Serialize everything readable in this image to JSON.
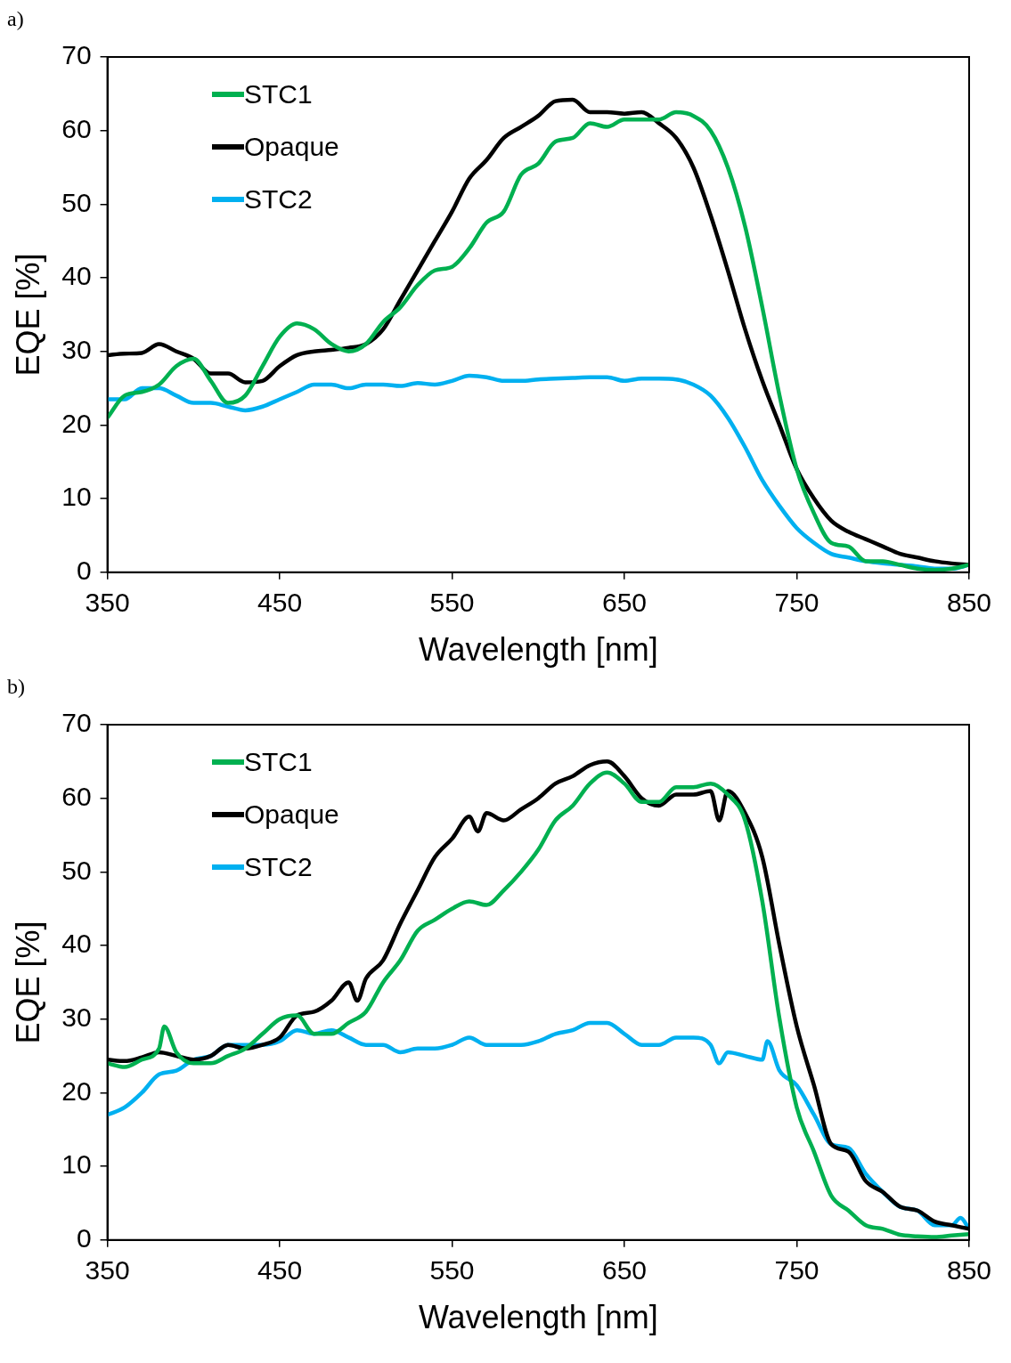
{
  "chart_data": [
    {
      "type": "line",
      "title": "a)",
      "xlabel": "Wavelength [nm]",
      "ylabel": "EQE [%]",
      "xlim": [
        350,
        850
      ],
      "xticks": [
        350,
        450,
        550,
        650,
        750,
        850
      ],
      "ylim": [
        0,
        70
      ],
      "yticks": [
        0,
        10,
        20,
        30,
        40,
        50,
        60,
        70
      ],
      "grid": false,
      "legend": "top left",
      "marker": "none",
      "line_style": "solid",
      "series": [
        {
          "name": "STC1",
          "color": "#00b050",
          "x": [
            350,
            360,
            370,
            380,
            390,
            400,
            410,
            420,
            430,
            440,
            450,
            460,
            470,
            480,
            490,
            500,
            510,
            520,
            530,
            540,
            550,
            560,
            570,
            580,
            590,
            600,
            610,
            620,
            630,
            640,
            650,
            660,
            670,
            680,
            690,
            700,
            710,
            720,
            730,
            740,
            750,
            760,
            770,
            780,
            790,
            800,
            810,
            820,
            830,
            840,
            850
          ],
          "values": [
            21,
            24,
            24.5,
            25.5,
            28,
            29,
            26,
            23,
            24,
            28,
            32,
            33.8,
            33,
            31,
            30,
            31,
            34,
            36,
            39,
            41,
            41.5,
            44,
            47.5,
            49,
            54,
            55.5,
            58.5,
            59,
            61,
            60.5,
            61.5,
            61.5,
            61.5,
            62.5,
            62,
            60,
            55,
            47,
            36,
            24,
            14,
            8,
            4,
            3.5,
            1.5,
            1.5,
            1,
            0.5,
            0.3,
            0.5,
            1
          ]
        },
        {
          "name": "Opaque",
          "color": "#000000",
          "x": [
            350,
            360,
            370,
            380,
            390,
            400,
            410,
            420,
            430,
            440,
            450,
            460,
            470,
            480,
            490,
            500,
            510,
            520,
            530,
            540,
            550,
            560,
            570,
            580,
            590,
            600,
            610,
            620,
            630,
            640,
            650,
            660,
            670,
            680,
            690,
            700,
            710,
            720,
            730,
            740,
            750,
            760,
            770,
            780,
            790,
            800,
            810,
            820,
            830,
            840,
            850
          ],
          "values": [
            29.5,
            29.7,
            29.8,
            31,
            30,
            29,
            27,
            27,
            25.8,
            26,
            28,
            29.5,
            30,
            30.2,
            30.5,
            31,
            33,
            37,
            41,
            45,
            49,
            53.5,
            56,
            59,
            60.5,
            62,
            64,
            64.2,
            62.5,
            62.5,
            62.3,
            62.5,
            61,
            59,
            55,
            48.5,
            41,
            33,
            26,
            20,
            14,
            10,
            7,
            5.5,
            4.5,
            3.5,
            2.5,
            2,
            1.5,
            1.2,
            1
          ]
        },
        {
          "name": "STC2",
          "color": "#00b0f0",
          "x": [
            350,
            360,
            370,
            380,
            390,
            400,
            410,
            420,
            430,
            440,
            450,
            460,
            470,
            480,
            490,
            500,
            510,
            520,
            530,
            540,
            550,
            560,
            570,
            580,
            590,
            600,
            610,
            620,
            630,
            640,
            650,
            660,
            670,
            680,
            690,
            700,
            710,
            720,
            730,
            740,
            750,
            760,
            770,
            780,
            790,
            800,
            810,
            820,
            830,
            840,
            850
          ],
          "values": [
            23.5,
            23.5,
            25,
            25,
            24,
            23,
            23,
            22.5,
            22,
            22.5,
            23.5,
            24.5,
            25.5,
            25.5,
            25,
            25.5,
            25.5,
            25.3,
            25.7,
            25.5,
            26,
            26.7,
            26.5,
            26,
            26,
            26.2,
            26.3,
            26.4,
            26.5,
            26.5,
            26,
            26.3,
            26.3,
            26.2,
            25.5,
            24,
            21,
            17,
            12.5,
            9,
            6,
            4,
            2.5,
            2,
            1.5,
            1.2,
            1,
            0.8,
            0.5,
            0.5,
            1
          ]
        }
      ]
    },
    {
      "type": "line",
      "title": "b)",
      "xlabel": "Wavelength [nm]",
      "ylabel": "EQE [%]",
      "xlim": [
        350,
        850
      ],
      "xticks": [
        350,
        450,
        550,
        650,
        750,
        850
      ],
      "ylim": [
        0,
        70
      ],
      "yticks": [
        0,
        10,
        20,
        30,
        40,
        50,
        60,
        70
      ],
      "grid": false,
      "legend": "top left",
      "marker": "none",
      "line_style": "solid",
      "series": [
        {
          "name": "STC1",
          "color": "#00b050",
          "x": [
            350,
            360,
            370,
            380,
            383,
            390,
            400,
            410,
            420,
            430,
            440,
            450,
            460,
            470,
            480,
            490,
            500,
            510,
            520,
            530,
            540,
            550,
            560,
            570,
            580,
            590,
            600,
            610,
            620,
            630,
            640,
            650,
            660,
            670,
            680,
            690,
            700,
            710,
            720,
            730,
            740,
            750,
            760,
            770,
            780,
            790,
            800,
            810,
            820,
            830,
            840,
            850
          ],
          "values": [
            24,
            23.5,
            24.5,
            26,
            29,
            25.5,
            24,
            24,
            25,
            26,
            28,
            30,
            30.5,
            28,
            28,
            29.5,
            31,
            35,
            38,
            42,
            43.5,
            45,
            46,
            45.5,
            47.5,
            50,
            53,
            57,
            59,
            62,
            63.5,
            62,
            59.5,
            59.5,
            61.5,
            61.5,
            62,
            60.5,
            57,
            46,
            30,
            18,
            12,
            6,
            4,
            2,
            1.5,
            0.7,
            0.5,
            0.4,
            0.6,
            0.8
          ]
        },
        {
          "name": "Opaque",
          "color": "#000000",
          "x": [
            350,
            360,
            370,
            380,
            390,
            400,
            410,
            420,
            430,
            440,
            450,
            460,
            470,
            480,
            490,
            495,
            500,
            510,
            520,
            530,
            540,
            550,
            560,
            565,
            570,
            580,
            590,
            600,
            610,
            620,
            630,
            640,
            650,
            660,
            670,
            680,
            690,
            700,
            705,
            710,
            720,
            730,
            740,
            750,
            760,
            770,
            780,
            790,
            800,
            810,
            820,
            830,
            840,
            850
          ],
          "values": [
            24.5,
            24.3,
            24.8,
            25.5,
            25,
            24.5,
            25,
            26.5,
            26,
            26.5,
            27.5,
            30.5,
            31,
            32.5,
            35,
            32.5,
            35.5,
            38,
            43,
            47.5,
            52,
            54.5,
            57.5,
            55.5,
            58,
            57,
            58.5,
            60,
            62,
            63,
            64.5,
            65,
            63,
            60,
            59,
            60.5,
            60.5,
            61,
            57,
            61,
            58,
            52,
            40,
            29,
            21,
            13,
            12,
            8,
            6.5,
            4.5,
            4,
            2.5,
            2,
            1.5
          ]
        },
        {
          "name": "STC2",
          "color": "#00b0f0",
          "x": [
            350,
            360,
            370,
            380,
            390,
            400,
            410,
            420,
            430,
            440,
            450,
            460,
            470,
            480,
            490,
            500,
            510,
            520,
            530,
            540,
            550,
            560,
            570,
            580,
            590,
            600,
            610,
            620,
            630,
            640,
            650,
            660,
            670,
            680,
            690,
            700,
            705,
            710,
            720,
            730,
            733,
            740,
            750,
            760,
            770,
            780,
            790,
            800,
            810,
            820,
            830,
            840,
            845,
            850
          ],
          "values": [
            17,
            18,
            20,
            22.5,
            23,
            24.5,
            25,
            26.5,
            26.5,
            26.5,
            27,
            28.5,
            28,
            28.5,
            27.5,
            26.5,
            26.5,
            25.5,
            26,
            26,
            26.5,
            27.5,
            26.5,
            26.5,
            26.5,
            27,
            28,
            28.5,
            29.5,
            29.5,
            28,
            26.5,
            26.5,
            27.5,
            27.5,
            26.5,
            24,
            25.5,
            25,
            24.5,
            27,
            23,
            21,
            17,
            13,
            12.5,
            9,
            6.5,
            4.5,
            4,
            2,
            2,
            3,
            1.5
          ]
        }
      ]
    }
  ]
}
